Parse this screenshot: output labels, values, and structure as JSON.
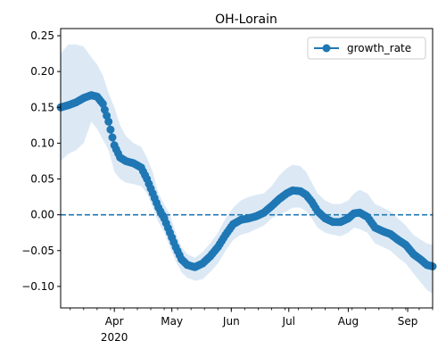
{
  "chart_data": {
    "type": "line",
    "title": "OH-Lorain",
    "xlabel": "",
    "ylabel": "",
    "x_start": "2020-03-04",
    "x_end": "2020-09-14",
    "xlim": [
      "2020-03-04",
      "2020-09-14"
    ],
    "ylim": [
      -0.13,
      0.26
    ],
    "x_ticks": [
      {
        "date": "2020-04-01",
        "label": "Apr",
        "sublabel": "2020"
      },
      {
        "date": "2020-05-01",
        "label": "May",
        "sublabel": ""
      },
      {
        "date": "2020-06-01",
        "label": "Jun",
        "sublabel": ""
      },
      {
        "date": "2020-07-01",
        "label": "Jul",
        "sublabel": ""
      },
      {
        "date": "2020-08-01",
        "label": "Aug",
        "sublabel": ""
      },
      {
        "date": "2020-09-01",
        "label": "Sep",
        "sublabel": ""
      }
    ],
    "y_ticks": [
      -0.1,
      -0.05,
      0.0,
      0.05,
      0.1,
      0.15,
      0.2,
      0.25
    ],
    "y_tick_labels": [
      "−0.10",
      "−0.05",
      "0.00",
      "0.05",
      "0.10",
      "0.15",
      "0.20",
      "0.25"
    ],
    "reference_line": {
      "y": 0.0,
      "style": "dashed"
    },
    "legend": {
      "position": "top-right",
      "entries": [
        "growth_rate"
      ]
    },
    "series": [
      {
        "name": "growth_rate",
        "color": "#1f77b4",
        "band_color": "#dce9f5",
        "marker": "circle",
        "points": [
          [
            "2020-03-04",
            0.15,
            0.075,
            0.225
          ],
          [
            "2020-03-08",
            0.153,
            0.085,
            0.238
          ],
          [
            "2020-03-12",
            0.157,
            0.09,
            0.238
          ],
          [
            "2020-03-16",
            0.163,
            0.1,
            0.235
          ],
          [
            "2020-03-20",
            0.167,
            0.13,
            0.22
          ],
          [
            "2020-03-23",
            0.165,
            0.12,
            0.21
          ],
          [
            "2020-03-26",
            0.155,
            0.105,
            0.195
          ],
          [
            "2020-03-29",
            0.13,
            0.09,
            0.17
          ],
          [
            "2020-04-01",
            0.097,
            0.06,
            0.15
          ],
          [
            "2020-04-04",
            0.08,
            0.05,
            0.125
          ],
          [
            "2020-04-07",
            0.075,
            0.045,
            0.11
          ],
          [
            "2020-04-11",
            0.072,
            0.043,
            0.1
          ],
          [
            "2020-04-15",
            0.066,
            0.04,
            0.095
          ],
          [
            "2020-04-18",
            0.05,
            0.03,
            0.08
          ],
          [
            "2020-04-21",
            0.03,
            0.01,
            0.06
          ],
          [
            "2020-04-24",
            0.01,
            -0.01,
            0.03
          ],
          [
            "2020-04-27",
            -0.005,
            -0.025,
            0.015
          ],
          [
            "2020-04-30",
            -0.025,
            -0.045,
            0.0
          ],
          [
            "2020-05-03",
            -0.045,
            -0.065,
            -0.025
          ],
          [
            "2020-05-06",
            -0.062,
            -0.08,
            -0.045
          ],
          [
            "2020-05-09",
            -0.07,
            -0.088,
            -0.055
          ],
          [
            "2020-05-13",
            -0.073,
            -0.092,
            -0.06
          ],
          [
            "2020-05-17",
            -0.068,
            -0.09,
            -0.052
          ],
          [
            "2020-05-21",
            -0.058,
            -0.08,
            -0.04
          ],
          [
            "2020-05-25",
            -0.045,
            -0.068,
            -0.025
          ],
          [
            "2020-05-29",
            -0.028,
            -0.05,
            -0.005
          ],
          [
            "2020-06-02",
            -0.013,
            -0.035,
            0.01
          ],
          [
            "2020-06-06",
            -0.007,
            -0.028,
            0.02
          ],
          [
            "2020-06-10",
            -0.005,
            -0.025,
            0.025
          ],
          [
            "2020-06-14",
            -0.002,
            -0.02,
            0.028
          ],
          [
            "2020-06-18",
            0.003,
            -0.015,
            0.03
          ],
          [
            "2020-06-22",
            0.012,
            -0.005,
            0.04
          ],
          [
            "2020-06-26",
            0.022,
            0.0,
            0.055
          ],
          [
            "2020-06-30",
            0.03,
            0.005,
            0.065
          ],
          [
            "2020-07-03",
            0.034,
            0.01,
            0.07
          ],
          [
            "2020-07-07",
            0.033,
            0.01,
            0.068
          ],
          [
            "2020-07-10",
            0.028,
            0.005,
            0.06
          ],
          [
            "2020-07-13",
            0.018,
            -0.005,
            0.045
          ],
          [
            "2020-07-16",
            0.005,
            -0.018,
            0.03
          ],
          [
            "2020-07-20",
            -0.005,
            -0.025,
            0.02
          ],
          [
            "2020-07-24",
            -0.01,
            -0.028,
            0.015
          ],
          [
            "2020-07-28",
            -0.01,
            -0.03,
            0.015
          ],
          [
            "2020-08-01",
            -0.005,
            -0.025,
            0.02
          ],
          [
            "2020-08-04",
            0.002,
            -0.018,
            0.03
          ],
          [
            "2020-08-07",
            0.003,
            -0.02,
            0.035
          ],
          [
            "2020-08-11",
            -0.003,
            -0.025,
            0.03
          ],
          [
            "2020-08-15",
            -0.018,
            -0.04,
            0.015
          ],
          [
            "2020-08-19",
            -0.023,
            -0.045,
            0.01
          ],
          [
            "2020-08-23",
            -0.027,
            -0.05,
            0.005
          ],
          [
            "2020-08-27",
            -0.035,
            -0.06,
            -0.005
          ],
          [
            "2020-08-31",
            -0.042,
            -0.068,
            -0.015
          ],
          [
            "2020-09-04",
            -0.055,
            -0.082,
            -0.028
          ],
          [
            "2020-09-08",
            -0.063,
            -0.095,
            -0.035
          ],
          [
            "2020-09-11",
            -0.07,
            -0.105,
            -0.04
          ],
          [
            "2020-09-14",
            -0.072,
            -0.11,
            -0.042
          ]
        ]
      }
    ]
  }
}
